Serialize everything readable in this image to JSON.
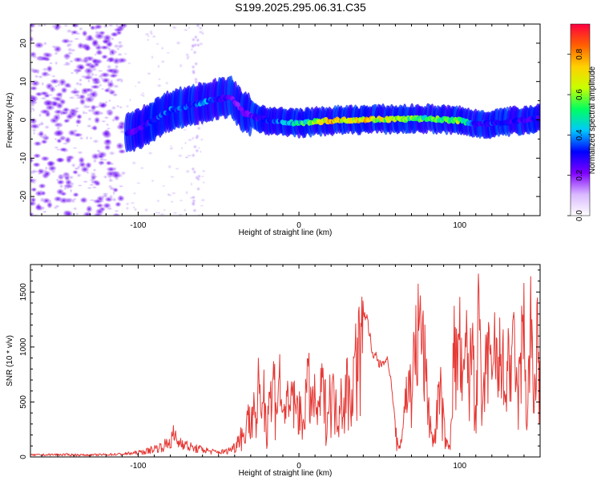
{
  "title": "S199.2025.295.06.31.C35",
  "colors": {
    "snr_line": "#e53935",
    "trace_low": "#c8a8f0",
    "noise": "#8f55e8"
  },
  "chart_data": [
    {
      "type": "heatmap",
      "title": "S199.2025.295.06.31.C35",
      "xlabel": "Height of straight line (km)",
      "ylabel": "Frequency (Hz)",
      "xlim": [
        -167,
        150
      ],
      "ylim": [
        -25,
        25
      ],
      "x_ticks": [
        -100,
        0,
        100
      ],
      "y_ticks": [
        -20,
        -10,
        0,
        10,
        20
      ],
      "colorbar": {
        "label": "Normalized spectral amplitude",
        "range": [
          0,
          0.95
        ],
        "ticks": [
          0.0,
          0.2,
          0.4,
          0.6,
          0.8
        ],
        "colormap": [
          "#ffffff",
          "#d9b8ff",
          "#7f00ff",
          "#0000ff",
          "#00c8ff",
          "#00ff60",
          "#c8ff00",
          "#ffd000",
          "#ff6000",
          "#ff0040"
        ]
      },
      "ridge": {
        "description_points_x": [
          -107,
          -100,
          -90,
          -80,
          -70,
          -60,
          -50,
          -42,
          -35,
          -25,
          -15,
          0,
          20,
          40,
          60,
          80,
          100,
          110,
          120,
          130,
          150
        ],
        "frequency_hz": [
          -3.5,
          -2.5,
          0,
          2.5,
          3.5,
          4.5,
          5.5,
          6,
          2,
          0.5,
          -0.5,
          -0.8,
          -0.2,
          0.1,
          0.2,
          0.3,
          -0.2,
          -1,
          -1,
          -0.5,
          0.5
        ],
        "peak_amplitude": [
          0.3,
          0.25,
          0.35,
          0.4,
          0.35,
          0.4,
          0.35,
          0.25,
          0.2,
          0.3,
          0.35,
          0.5,
          0.8,
          0.75,
          0.65,
          0.55,
          0.6,
          0.3,
          0.35,
          0.3,
          0.3
        ]
      }
    },
    {
      "type": "line",
      "xlabel": "Height of straight line (km)",
      "ylabel": "SNR (10 * v/v)",
      "xlim": [
        -167,
        150
      ],
      "ylim": [
        0,
        1750
      ],
      "x_ticks": [
        -100,
        0,
        100
      ],
      "y_ticks": [
        0,
        500,
        1000,
        1500
      ],
      "series": [
        {
          "name": "SNR",
          "color": "#e53935",
          "x": [
            -167,
            -150,
            -130,
            -110,
            -100,
            -95,
            -90,
            -85,
            -80,
            -78,
            -75,
            -72,
            -70,
            -65,
            -60,
            -55,
            -50,
            -45,
            -40,
            -36,
            -34,
            -32,
            -30,
            -28,
            -26,
            -25,
            -24,
            -22,
            -20,
            -18,
            -17,
            -16,
            -14,
            -12,
            -10,
            -8,
            -6,
            -4,
            -2,
            0,
            2,
            4,
            6,
            8,
            10,
            12,
            14,
            16,
            18,
            20,
            22,
            24,
            26,
            28,
            30,
            32,
            34,
            36,
            38,
            40,
            42,
            44,
            46,
            48,
            50,
            52,
            54,
            56,
            58,
            60,
            62,
            64,
            66,
            68,
            70,
            72,
            74,
            76,
            78,
            80,
            82,
            84,
            86,
            88,
            90,
            92,
            94,
            96,
            98,
            100,
            102,
            104,
            106,
            108,
            110,
            112,
            114,
            116,
            118,
            120,
            122,
            124,
            126,
            128,
            130,
            132,
            134,
            136,
            138,
            140,
            142,
            144,
            146,
            148,
            150
          ],
          "values": [
            20,
            25,
            20,
            30,
            45,
            60,
            90,
            110,
            160,
            230,
            150,
            170,
            120,
            90,
            80,
            60,
            50,
            60,
            110,
            300,
            200,
            550,
            350,
            700,
            300,
            1000,
            500,
            850,
            350,
            900,
            450,
            1050,
            600,
            950,
            400,
            800,
            450,
            850,
            500,
            700,
            300,
            750,
            900,
            600,
            700,
            450,
            850,
            700,
            500,
            900,
            650,
            500,
            800,
            600,
            900,
            650,
            1000,
            1250,
            1350,
            1370,
            1300,
            1150,
            900,
            950,
            850,
            880,
            920,
            850,
            600,
            300,
            80,
            250,
            700,
            800,
            900,
            1200,
            1500,
            1550,
            1200,
            700,
            350,
            150,
            600,
            800,
            400,
            150,
            100,
            1350,
            1100,
            1400,
            700,
            1350,
            900,
            1450,
            600,
            1750,
            400,
            1000,
            1500,
            700,
            1400,
            800,
            1650,
            500,
            1300,
            900,
            1400,
            600,
            1200,
            1550,
            350,
            1750,
            500,
            1550,
            700
          ]
        }
      ]
    }
  ]
}
